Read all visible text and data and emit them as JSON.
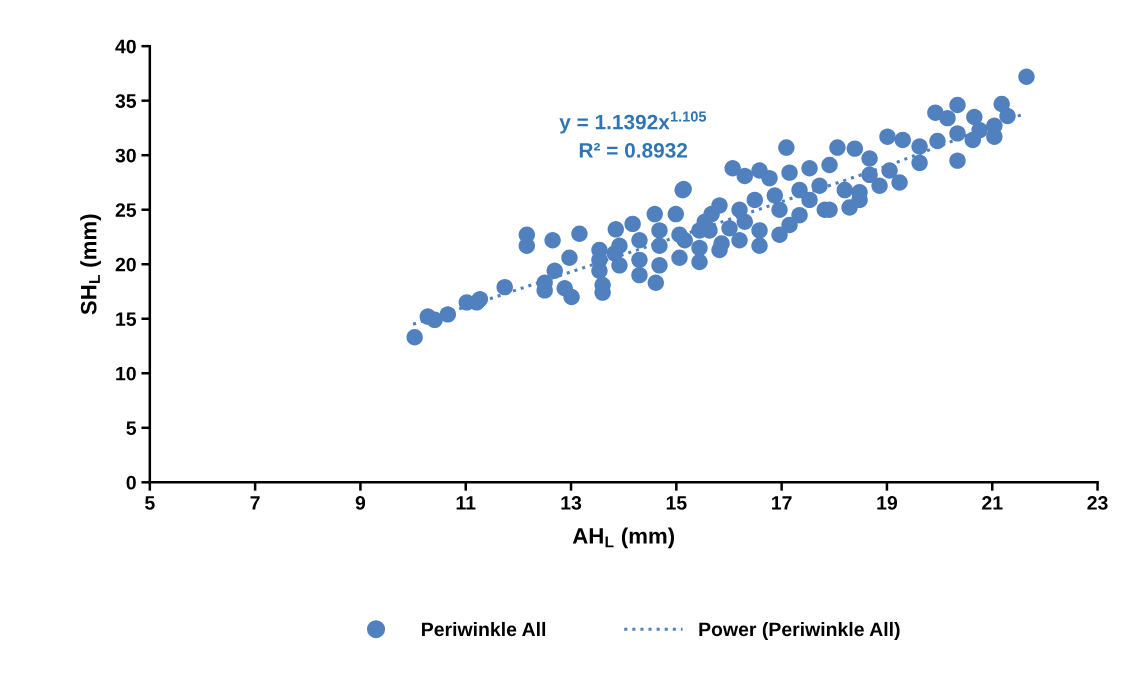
{
  "chart_data": {
    "type": "scatter",
    "xlabel": "AH$_{L}$ (mm)",
    "ylabel": "SH$_{L}$ (mm)",
    "xlim": [
      5,
      23
    ],
    "xticks": [
      5,
      7,
      9,
      11,
      13,
      15,
      17,
      19,
      21,
      23
    ],
    "ylim": [
      0,
      40
    ],
    "yticks": [
      0,
      5,
      10,
      15,
      20,
      25,
      30,
      35,
      40
    ],
    "grid": false,
    "legend": "bottom",
    "annotations": [
      "y = 1.1392x$^{1.105}$",
      "R² = 0.8932"
    ],
    "series": [
      {
        "name": "Periwinkle All",
        "color": "#5081be",
        "marker": "circle",
        "x": [
          10.03,
          10.28,
          10.41,
          10.66,
          11.02,
          11.27,
          11.21,
          11.74,
          12.16,
          12.16,
          12.65,
          13.16,
          12.5,
          12.5,
          12.69,
          12.97,
          13.01,
          12.88,
          13.6,
          13.6,
          13.54,
          13.83,
          13.85,
          14.17,
          14.59,
          14.61,
          14.99,
          15.14,
          14.3,
          14.68,
          15.16,
          15.44,
          15.63,
          15.67,
          15.86,
          16.01,
          15.54,
          15.12,
          17.09,
          16.07,
          16.3,
          16.58,
          16.77,
          17.15,
          17.53,
          17.91,
          18.06,
          18.39,
          18.67,
          19.01,
          19.3,
          19.62,
          19.96,
          19.92,
          20.15,
          20.34,
          20.34,
          20.34,
          20.66,
          20.63,
          21.04,
          21.04,
          21.29,
          21.18,
          21.65,
          19.62,
          20.76,
          16.3,
          16.58,
          16.96,
          17.15,
          17.53,
          17.82,
          18.2,
          18.48,
          18.86,
          19.05,
          19.24,
          18.67,
          18.29,
          17.72,
          17.34,
          16.87,
          16.49,
          16.2,
          15.82,
          15.44,
          15.06,
          14.68,
          14.3,
          13.92,
          13.54,
          13.54,
          13.92,
          14.3,
          14.68,
          15.06,
          15.44,
          15.82,
          16.2,
          16.58,
          16.96,
          17.34,
          17.91,
          18.48
        ],
        "values": [
          13.3,
          15.2,
          14.9,
          15.4,
          16.5,
          16.8,
          16.5,
          17.9,
          22.7,
          21.7,
          22.2,
          22.8,
          18.3,
          17.6,
          19.4,
          20.6,
          17.0,
          17.8,
          17.4,
          18.1,
          20.4,
          21.0,
          23.2,
          23.7,
          24.6,
          18.3,
          24.6,
          26.9,
          20.4,
          21.7,
          22.2,
          21.5,
          23.1,
          24.6,
          21.9,
          23.3,
          23.9,
          26.8,
          30.7,
          28.8,
          28.1,
          28.6,
          27.9,
          28.4,
          28.8,
          29.1,
          30.7,
          30.6,
          29.7,
          31.7,
          31.4,
          29.3,
          31.3,
          33.9,
          33.4,
          34.6,
          32.0,
          29.5,
          33.5,
          31.4,
          31.7,
          32.7,
          33.6,
          34.7,
          37.2,
          30.8,
          32.3,
          23.9,
          23.1,
          25.0,
          23.6,
          25.9,
          25.0,
          26.8,
          25.9,
          27.2,
          28.6,
          27.5,
          28.2,
          25.2,
          27.2,
          26.8,
          26.3,
          25.9,
          25.0,
          25.4,
          23.1,
          22.7,
          23.1,
          22.2,
          21.7,
          21.3,
          19.4,
          19.9,
          19.0,
          19.9,
          20.6,
          20.2,
          21.3,
          22.2,
          21.7,
          22.7,
          24.5,
          25.0,
          26.6
        ]
      },
      {
        "name": "Power (Periwinkle All)",
        "color": "#5081be",
        "type": "line",
        "marker": "none",
        "line_style": "dotted",
        "x": [
          10.0,
          13.0,
          16.0,
          19.0,
          21.6
        ],
        "values": [
          14.5,
          19.3,
          24.1,
          29.0,
          33.8
        ]
      }
    ]
  }
}
